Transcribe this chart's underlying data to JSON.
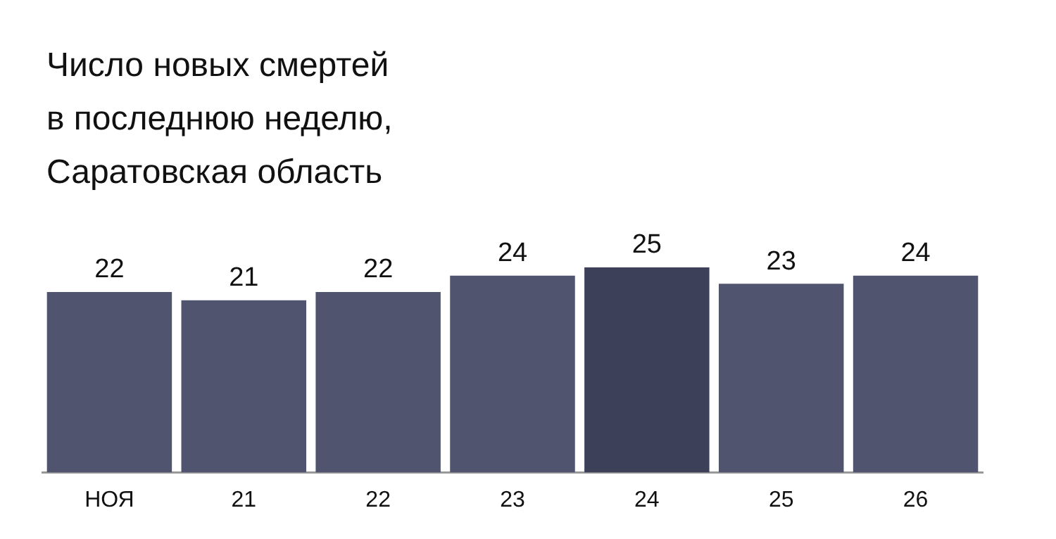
{
  "chart_data": {
    "type": "bar",
    "title": "Число новых смертей\nв последнюю неделю,\nСаратовская область",
    "categories": [
      "НОЯ",
      "21",
      "22",
      "23",
      "24",
      "25",
      "26"
    ],
    "values": [
      22,
      21,
      22,
      24,
      25,
      23,
      24
    ],
    "colors": [
      "#50546f",
      "#50546f",
      "#50546f",
      "#50546f",
      "#3d4059",
      "#50546f",
      "#50546f"
    ],
    "data_labels": true
  }
}
